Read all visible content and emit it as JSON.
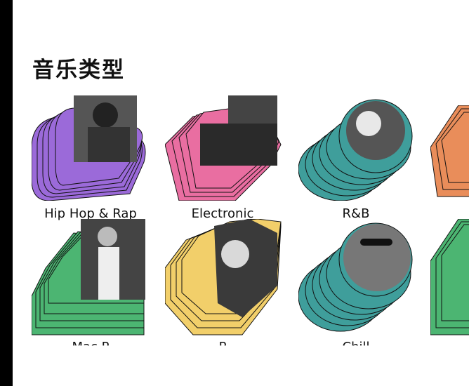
{
  "section": {
    "title": "音乐类型"
  },
  "genres": [
    {
      "label": "Hip Hop & Rap",
      "color": "#9b6ad9"
    },
    {
      "label": "Electronic",
      "color": "#e96ea1"
    },
    {
      "label": "R&B",
      "color": "#3f9e9b"
    },
    {
      "label": "",
      "color": "#e98d5a"
    },
    {
      "label": "Mac P",
      "color": "#4cb572"
    },
    {
      "label": "P",
      "color": "#f2cf6a"
    },
    {
      "label": "Chill",
      "color": "#3f9e9b"
    },
    {
      "label": "",
      "color": "#4cb572"
    }
  ],
  "icons": {
    "row1": "artist-photo",
    "row2": "artist-photo"
  }
}
